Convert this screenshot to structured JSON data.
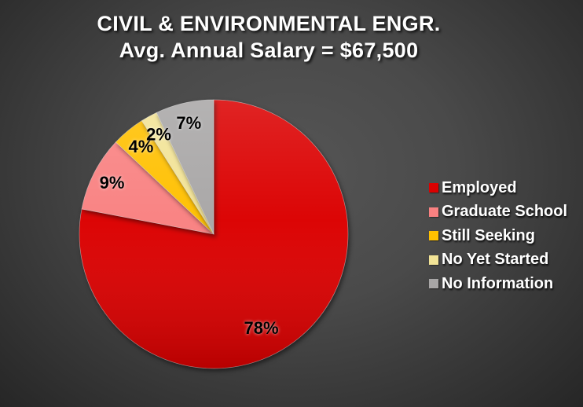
{
  "theme": {
    "background_center": "#545454",
    "background_edge": "#262626",
    "title_color": "#FFFFFF",
    "legend_text_color": "#FFFFFF",
    "data_label_color": "#000000"
  },
  "chart_data": {
    "type": "pie",
    "title": "CIVIL & ENVIRONMENTAL ENGR.",
    "subtitle": "Avg. Annual Salary = $67,500",
    "legend_position": "right",
    "direction": "clockwise",
    "start_angle_deg": 0,
    "data_labels": "percent-inside",
    "slices": [
      {
        "label": "Employed",
        "value_pct": 78,
        "data_label": "78%",
        "color": "#DB0000"
      },
      {
        "label": "Graduate School",
        "value_pct": 9,
        "data_label": "9%",
        "color": "#F98181"
      },
      {
        "label": "Still Seeking",
        "value_pct": 4,
        "data_label": "4%",
        "color": "#FFC000"
      },
      {
        "label": "No Yet Started",
        "value_pct": 2,
        "data_label": "2%",
        "color": "#F2E396"
      },
      {
        "label": "No Information",
        "value_pct": 7,
        "data_label": "7%",
        "color": "#A8A6A6"
      }
    ]
  }
}
